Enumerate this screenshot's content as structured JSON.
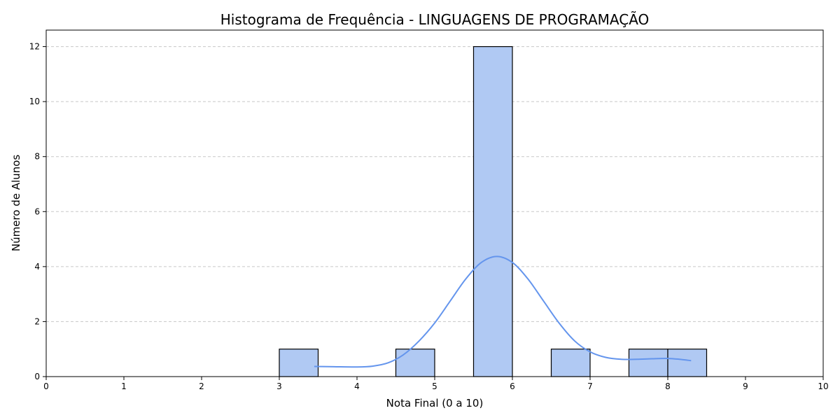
{
  "chart_data": {
    "type": "bar",
    "title": "Histograma de Frequência - LINGUAGENS DE PROGRAMAÇÃO",
    "xlabel": "Nota Final (0 a 10)",
    "ylabel": "Número de Alunos",
    "xlim": [
      0,
      10
    ],
    "ylim": [
      0,
      12.6
    ],
    "xticks": [
      0,
      1,
      2,
      3,
      4,
      5,
      6,
      7,
      8,
      9,
      10
    ],
    "yticks": [
      0,
      2,
      4,
      6,
      8,
      10,
      12
    ],
    "grid": "y-dashed",
    "bins": [
      {
        "x0": 3.0,
        "x1": 3.5,
        "count": 1
      },
      {
        "x0": 4.5,
        "x1": 5.0,
        "count": 1
      },
      {
        "x0": 5.5,
        "x1": 6.0,
        "count": 12
      },
      {
        "x0": 6.5,
        "x1": 7.0,
        "count": 1
      },
      {
        "x0": 7.5,
        "x1": 8.0,
        "count": 1
      },
      {
        "x0": 8.0,
        "x1": 8.5,
        "count": 1
      }
    ],
    "kde": {
      "x": [
        3.45,
        3.7,
        4.0,
        4.2,
        4.4,
        4.6,
        4.8,
        5.0,
        5.2,
        5.4,
        5.6,
        5.8,
        6.0,
        6.2,
        6.4,
        6.6,
        6.8,
        7.0,
        7.2,
        7.4,
        7.6,
        7.8,
        8.0,
        8.15,
        8.3
      ],
      "y": [
        0.37,
        0.36,
        0.35,
        0.38,
        0.5,
        0.8,
        1.3,
        1.95,
        2.75,
        3.55,
        4.15,
        4.37,
        4.15,
        3.55,
        2.75,
        1.95,
        1.3,
        0.9,
        0.7,
        0.63,
        0.63,
        0.65,
        0.66,
        0.63,
        0.58
      ]
    },
    "colors": {
      "bar_fill": "#b0c9f3",
      "bar_edge": "#000000",
      "kde_line": "#6495ed",
      "grid": "#c8c8c8"
    }
  }
}
